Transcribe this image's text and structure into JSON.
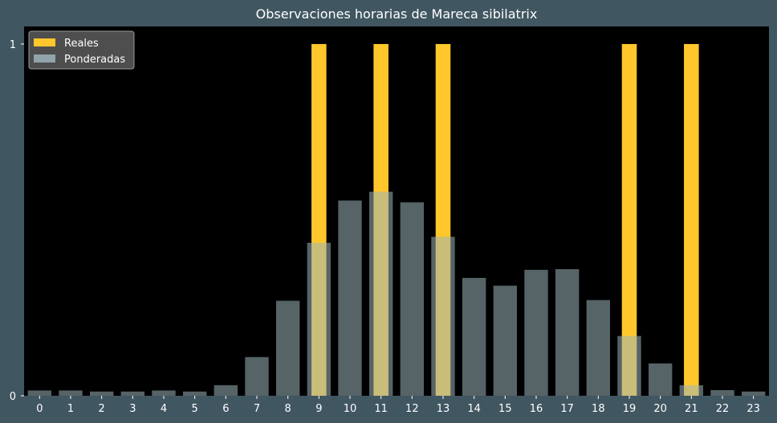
{
  "chart_data": {
    "type": "bar",
    "title": "Observaciones horarias de Mareca sibilatrix",
    "xlabel": "",
    "ylabel": "",
    "categories": [
      "0",
      "1",
      "2",
      "3",
      "4",
      "5",
      "6",
      "7",
      "8",
      "9",
      "10",
      "11",
      "12",
      "13",
      "14",
      "15",
      "16",
      "17",
      "18",
      "19",
      "20",
      "21",
      "22",
      "23"
    ],
    "yticks": [
      "0",
      "1"
    ],
    "ylim": [
      0,
      1.05
    ],
    "legend_position": "top-left",
    "series": [
      {
        "name": "Reales",
        "color": "#ffc72c",
        "values": [
          0,
          0,
          0,
          0,
          0,
          0,
          0,
          0,
          0,
          1,
          0,
          1,
          0,
          1,
          0,
          0,
          0,
          0,
          0,
          1,
          0,
          1,
          0,
          0
        ]
      },
      {
        "name": "Ponderadas",
        "color": "#9db4bb",
        "opacity": 0.55,
        "values": [
          0.015,
          0.015,
          0.012,
          0.012,
          0.015,
          0.012,
          0.03,
          0.11,
          0.27,
          0.435,
          0.555,
          0.58,
          0.55,
          0.452,
          0.335,
          0.313,
          0.358,
          0.36,
          0.272,
          0.17,
          0.092,
          0.03,
          0.016,
          0.012
        ]
      }
    ]
  },
  "colors": {
    "background": "#405661",
    "plot_background": "#000000",
    "text": "#ffffff",
    "legend_background": "#555555",
    "legend_border": "#9a9a9a"
  }
}
